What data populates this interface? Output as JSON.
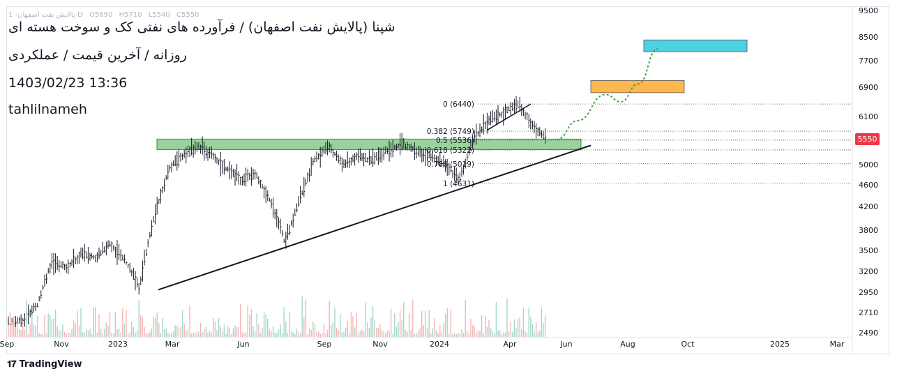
{
  "header": {
    "title": "شپنا (پالایش نفت اصفهان) / فرآورده های نفتی کک و سوخت هسته ای",
    "subtitle": "روزانه / آخرین قیمت / عملکردی",
    "datetime": "1403/02/23 13:36",
    "author": "tahlilnameh"
  },
  "legend": {
    "symbol": "1 -پالایش نفت اصفهان-D",
    "open": "O5690",
    "high": "H5710",
    "low": "L5540",
    "close": "C5550"
  },
  "footer": {
    "brand": "TradingView",
    "logo_icon": "tradingview-logo-icon"
  },
  "chart_data": {
    "type": "candlestick",
    "last_price": "5550",
    "y_ticks": [
      "9500",
      "8500",
      "7700",
      "6900",
      "6100",
      "5550",
      "5000",
      "4600",
      "4200",
      "3800",
      "3500",
      "3200",
      "2950",
      "2710",
      "2490"
    ],
    "x_ticks": [
      "Sep",
      "Nov",
      "2023",
      "Mar",
      "Jun",
      "Sep",
      "Nov",
      "2024",
      "Apr",
      "Jun",
      "Aug",
      "Oct",
      "2025",
      "Mar"
    ],
    "fib_levels": [
      {
        "label": "0 (6440)",
        "value": 6440
      },
      {
        "label": "0.382 (5749)",
        "value": 5749
      },
      {
        "label": "0.5 (5536)",
        "value": 5536
      },
      {
        "label": "0.618 (5322)",
        "value": 5322
      },
      {
        "label": "0.786 (5019)",
        "value": 5019
      },
      {
        "label": "1 (4631)",
        "value": 4631
      }
    ],
    "support_zone": [
      5330,
      5560
    ],
    "target_zones": [
      {
        "color": "#ffb74d",
        "low": 6750,
        "high": 7100
      },
      {
        "color": "#4dd0e1",
        "low": 8000,
        "high": 8400
      }
    ],
    "price_path": [
      [
        "Sep",
        2600
      ],
      [
        "Oct",
        2620
      ],
      [
        "Nov",
        2800
      ],
      [
        "Nov",
        3350
      ],
      [
        "Dec",
        3250
      ],
      [
        "Dec",
        3450
      ],
      [
        "2023",
        3400
      ],
      [
        "Jan",
        3600
      ],
      [
        "Feb",
        3350
      ],
      [
        "Feb",
        3000
      ],
      [
        "Mar",
        4000
      ],
      [
        "Apr",
        4900
      ],
      [
        "Apr",
        5200
      ],
      [
        "May",
        5400
      ],
      [
        "May",
        5200
      ],
      [
        "Jun",
        4900
      ],
      [
        "Jun",
        4700
      ],
      [
        "Jul",
        4800
      ],
      [
        "Jul",
        4300
      ],
      [
        "Aug",
        3600
      ],
      [
        "Aug",
        4300
      ],
      [
        "Sep",
        5100
      ],
      [
        "Sep",
        5400
      ],
      [
        "Oct",
        5000
      ],
      [
        "Oct",
        5200
      ],
      [
        "Nov",
        5100
      ],
      [
        "Nov",
        5300
      ],
      [
        "Dec",
        5450
      ],
      [
        "Dec",
        5300
      ],
      [
        "2024",
        5200
      ],
      [
        "Jan",
        5000
      ],
      [
        "Feb",
        4700
      ],
      [
        "Mar",
        5600
      ],
      [
        "Mar",
        6000
      ],
      [
        "Apr",
        6200
      ],
      [
        "Apr",
        6440
      ],
      [
        "May",
        5900
      ],
      [
        "May",
        5550
      ]
    ],
    "projection": [
      [
        "May",
        5550
      ],
      [
        "Jun",
        6000
      ],
      [
        "Jul",
        6700
      ],
      [
        "Jul",
        6500
      ],
      [
        "Aug",
        7000
      ],
      [
        "Sep",
        8100
      ]
    ],
    "trendline": {
      "from": [
        "Feb 2023",
        2980
      ],
      "to": [
        "Jun 2024",
        5420
      ]
    },
    "wedge_upper": {
      "from": [
        "Mar 2024",
        5780
      ],
      "to": [
        "Apr 2024",
        6440
      ]
    }
  }
}
